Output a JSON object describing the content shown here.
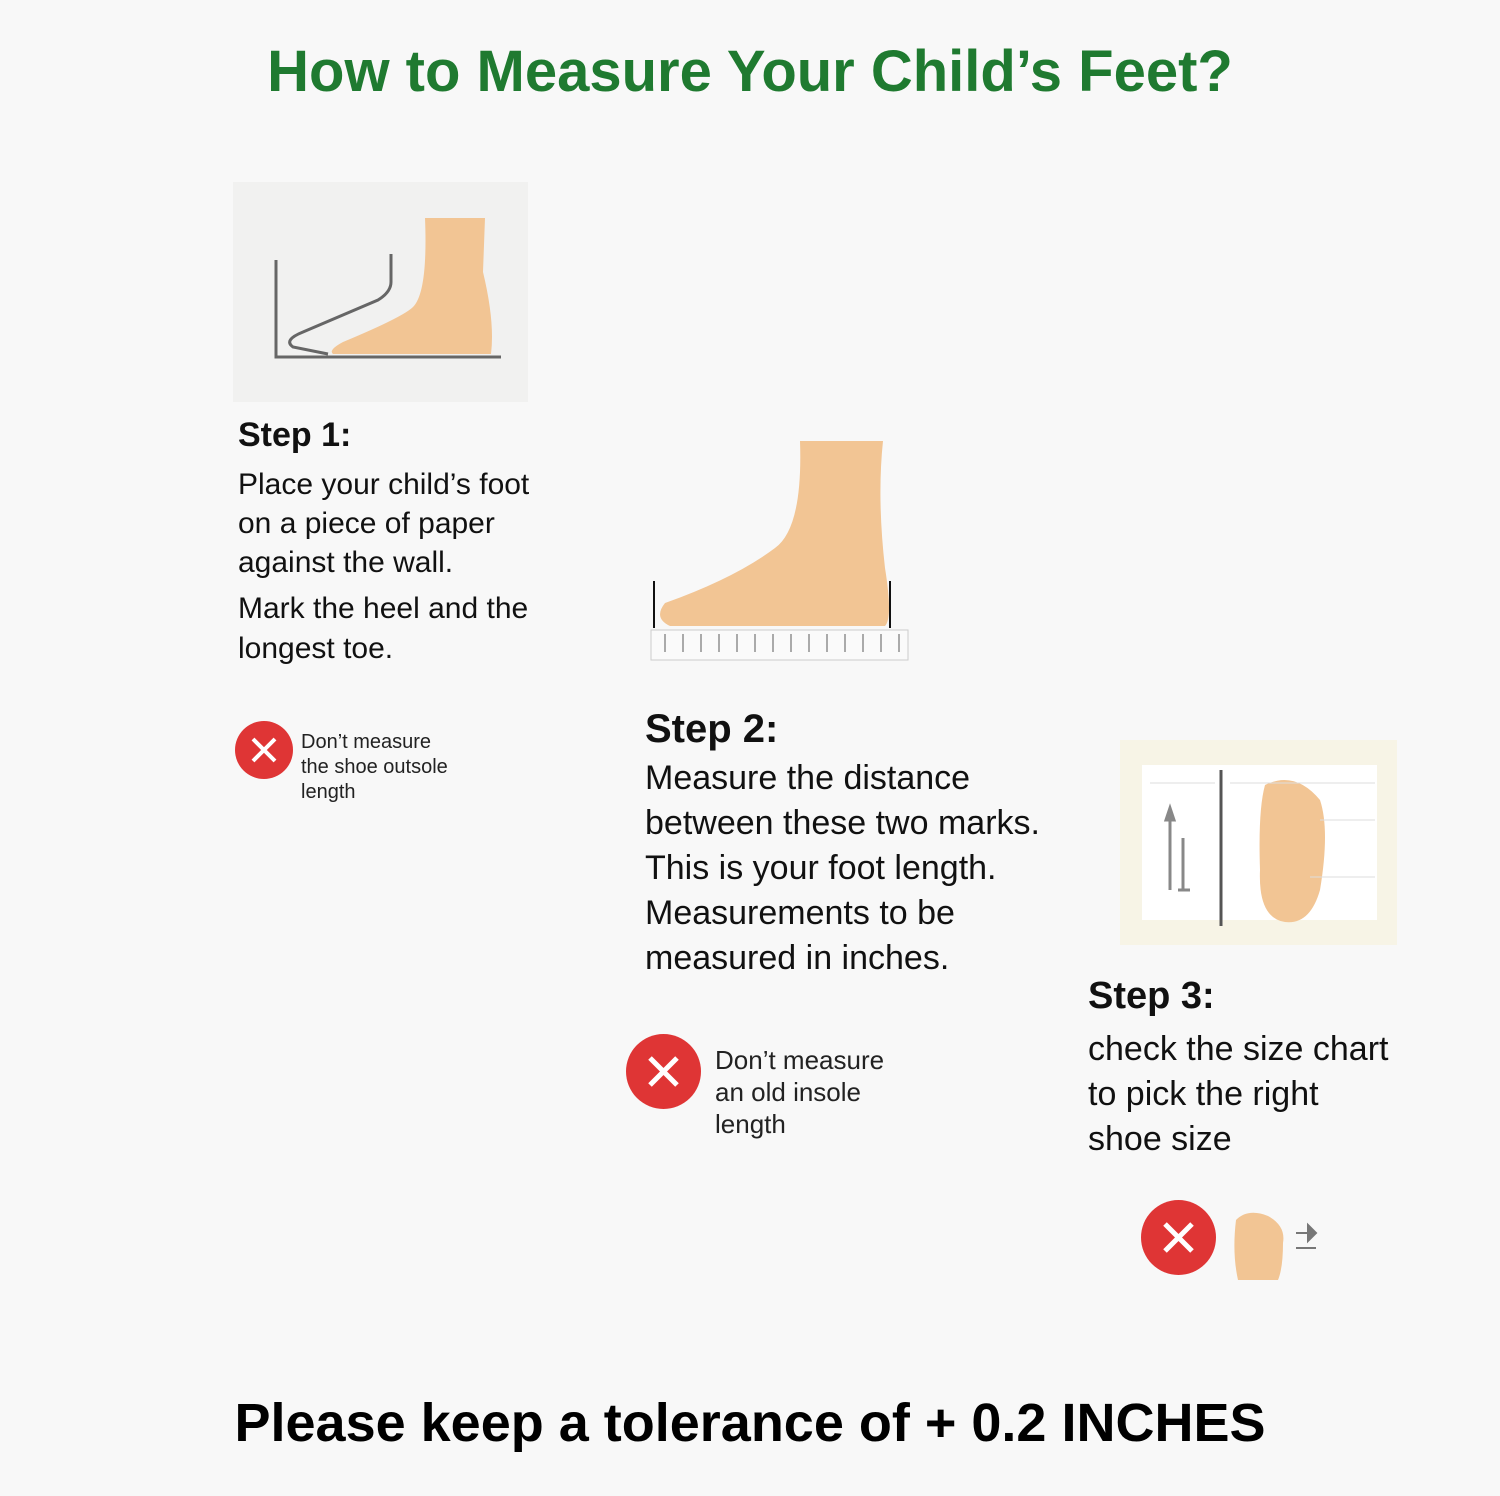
{
  "title": "How to Measure Your Child’s Feet?",
  "steps": [
    {
      "heading": "Step 1:",
      "text": "Place your child’s foot\non a piece of paper\nagainst the wall.",
      "text2": "Mark the heel and the\nlongest toe.",
      "warning": "Don’t measure\nthe shoe outsole\nlength",
      "icon": "foot-against-wall-illustration"
    },
    {
      "heading": "Step 2:",
      "text": "Measure the distance\nbetween these two marks.\nThis is your foot length.\nMeasurements to be\nmeasured in inches.",
      "warning": "Don’t measure\nan old insole\nlength",
      "icon": "foot-on-ruler-illustration"
    },
    {
      "heading": "Step 3:",
      "text": "check the size chart\nto pick the right\nshoe size",
      "icon": "foot-size-chart-illustration"
    }
  ],
  "footer": "Please keep a tolerance of + 0.2 INCHES",
  "colors": {
    "title": "#1f7a30",
    "warning": "#df3535",
    "skin": "#f2c594"
  }
}
